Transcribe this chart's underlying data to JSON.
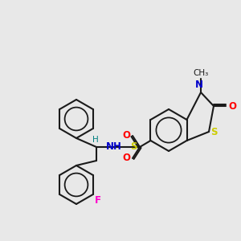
{
  "background_color": "#e8e8e8",
  "bond_color": "#1a1a1a",
  "bond_width": 1.5,
  "atom_colors": {
    "N": "#0000cc",
    "O": "#ff0000",
    "S": "#cccc00",
    "F": "#ff00cc",
    "H": "#008080",
    "C": "#1a1a1a"
  },
  "font_size": 8.5
}
